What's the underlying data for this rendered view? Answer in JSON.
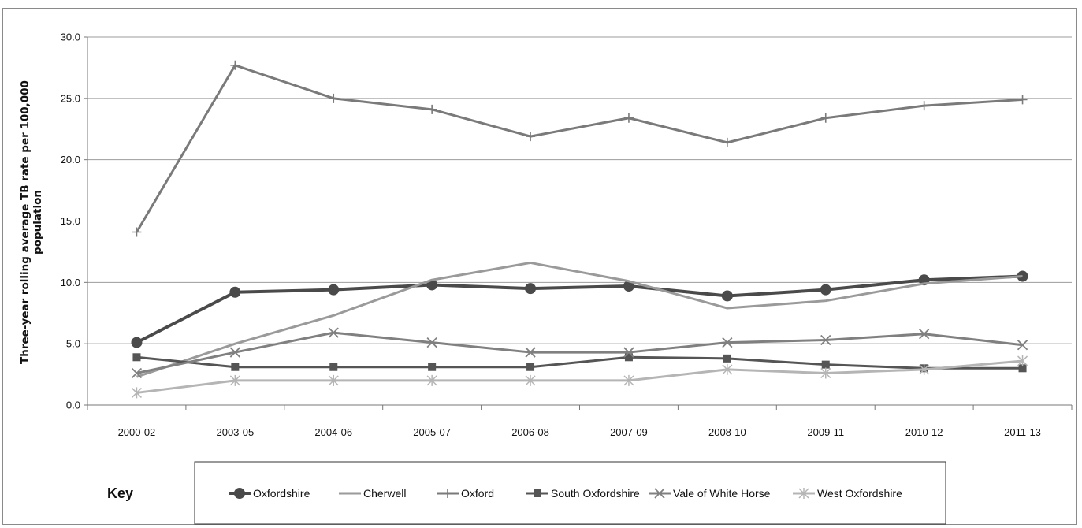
{
  "chart_data": {
    "type": "line",
    "title": "",
    "xlabel": "",
    "ylabel": "Three-year rolling average TB rate per 100,000 population",
    "ylabel_lines": [
      "Three-year rolling average TB rate per 100,000",
      "population"
    ],
    "ylim": [
      0,
      30
    ],
    "yticks": [
      "0.0",
      "5.0",
      "10.0",
      "15.0",
      "20.0",
      "25.0",
      "30.0"
    ],
    "grid": "horizontal",
    "legend_position": "bottom",
    "legend_title": "Key",
    "categories": [
      "2000-02",
      "2003-05",
      "2004-06",
      "2005-07",
      "2006-08",
      "2007-09",
      "2008-10",
      "2009-11",
      "2010-12",
      "2011-13"
    ],
    "series": [
      {
        "name": "Oxfordshire",
        "color": "#4a4a4a",
        "marker": "circle",
        "values": [
          5.1,
          9.2,
          9.4,
          9.8,
          9.5,
          9.7,
          8.9,
          9.4,
          10.2,
          10.5
        ]
      },
      {
        "name": "Cherwell",
        "color": "#9a9a9a",
        "marker": "none",
        "values": [
          2.3,
          5.0,
          7.3,
          10.2,
          11.6,
          10.1,
          7.9,
          8.5,
          9.9,
          10.5
        ]
      },
      {
        "name": "Oxford",
        "color": "#7a7a7a",
        "marker": "plus",
        "values": [
          14.1,
          27.7,
          25.0,
          24.1,
          21.9,
          23.4,
          21.4,
          23.4,
          24.4,
          24.9
        ]
      },
      {
        "name": "South Oxfordshire",
        "color": "#555555",
        "marker": "square",
        "values": [
          3.9,
          3.1,
          3.1,
          3.1,
          3.1,
          3.9,
          3.8,
          3.3,
          3.0,
          3.0
        ]
      },
      {
        "name": "Vale of White Horse",
        "color": "#808080",
        "marker": "x",
        "values": [
          2.6,
          4.3,
          5.9,
          5.1,
          4.3,
          4.3,
          5.1,
          5.3,
          5.8,
          4.9
        ]
      },
      {
        "name": "West Oxfordshire",
        "color": "#b5b5b5",
        "marker": "asterisk",
        "values": [
          1.0,
          2.0,
          2.0,
          2.0,
          2.0,
          2.0,
          2.9,
          2.6,
          2.9,
          3.6
        ]
      }
    ]
  }
}
